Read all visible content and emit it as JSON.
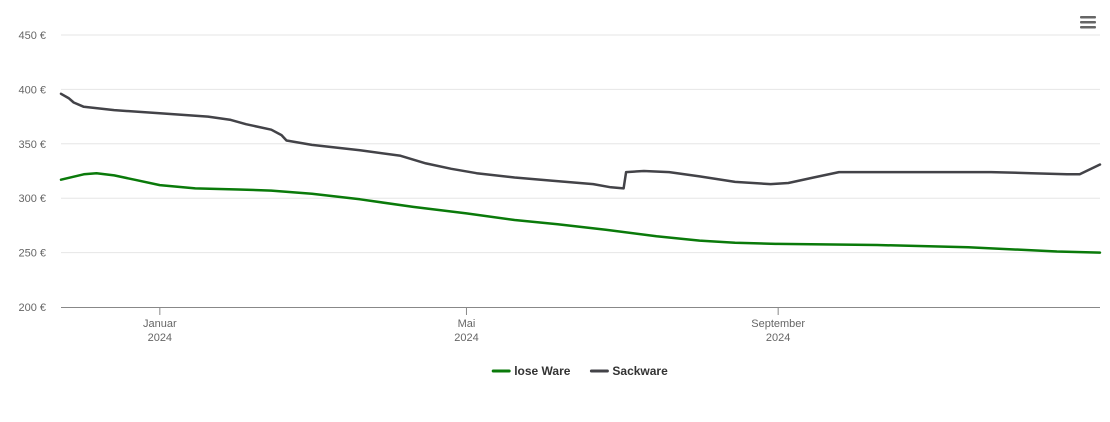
{
  "chart_data": {
    "type": "line",
    "title": "",
    "xlabel": "",
    "ylabel": "",
    "x_range": [
      "2023-11-23",
      "2025-01-06"
    ],
    "ylim": [
      200,
      450
    ],
    "yticks": [
      {
        "value": 200,
        "label": "200 €"
      },
      {
        "value": 250,
        "label": "250 €"
      },
      {
        "value": 300,
        "label": "300 €"
      },
      {
        "value": 350,
        "label": "350 €"
      },
      {
        "value": 400,
        "label": "400 €"
      },
      {
        "value": 450,
        "label": "450 €"
      }
    ],
    "xticks": [
      {
        "date": "2024-01-01",
        "label": [
          "Januar",
          "2024"
        ]
      },
      {
        "date": "2024-05-01",
        "label": [
          "Mai",
          "2024"
        ]
      },
      {
        "date": "2024-09-01",
        "label": [
          "September",
          "2024"
        ]
      }
    ],
    "grid": true,
    "legend_position": "bottom-center",
    "series": [
      {
        "name": "lose Ware",
        "color": "#0a7a0a",
        "points": [
          [
            "2023-11-23",
            317
          ],
          [
            "2023-12-02",
            322
          ],
          [
            "2023-12-07",
            323
          ],
          [
            "2023-12-14",
            321
          ],
          [
            "2023-12-22",
            317
          ],
          [
            "2024-01-01",
            312
          ],
          [
            "2024-01-15",
            309
          ],
          [
            "2024-02-01",
            308
          ],
          [
            "2024-02-14",
            307
          ],
          [
            "2024-03-01",
            304
          ],
          [
            "2024-03-20",
            299
          ],
          [
            "2024-04-10",
            292
          ],
          [
            "2024-05-01",
            286
          ],
          [
            "2024-05-20",
            280
          ],
          [
            "2024-06-06",
            276
          ],
          [
            "2024-06-25",
            271
          ],
          [
            "2024-07-15",
            265
          ],
          [
            "2024-08-01",
            261
          ],
          [
            "2024-08-15",
            259
          ],
          [
            "2024-08-31",
            258
          ],
          [
            "2024-09-01",
            258
          ],
          [
            "2024-10-10",
            257
          ],
          [
            "2024-11-15",
            255
          ],
          [
            "2024-12-20",
            251
          ],
          [
            "2025-01-06",
            250
          ]
        ]
      },
      {
        "name": "Sackware",
        "color": "#434348",
        "points": [
          [
            "2023-11-23",
            396
          ],
          [
            "2023-11-26",
            392
          ],
          [
            "2023-11-28",
            388
          ],
          [
            "2023-12-02",
            384
          ],
          [
            "2023-12-14",
            381
          ],
          [
            "2024-01-01",
            378
          ],
          [
            "2024-01-20",
            375
          ],
          [
            "2024-01-29",
            372
          ],
          [
            "2024-02-04",
            368
          ],
          [
            "2024-02-14",
            363
          ],
          [
            "2024-02-18",
            358
          ],
          [
            "2024-02-20",
            353
          ],
          [
            "2024-03-01",
            349
          ],
          [
            "2024-03-20",
            344
          ],
          [
            "2024-04-05",
            339
          ],
          [
            "2024-04-15",
            332
          ],
          [
            "2024-04-25",
            327
          ],
          [
            "2024-05-05",
            323
          ],
          [
            "2024-05-20",
            319
          ],
          [
            "2024-06-04",
            316
          ],
          [
            "2024-06-20",
            313
          ],
          [
            "2024-06-27",
            310
          ],
          [
            "2024-07-02",
            309
          ],
          [
            "2024-07-03",
            324
          ],
          [
            "2024-07-10",
            325
          ],
          [
            "2024-07-20",
            324
          ],
          [
            "2024-08-01",
            320
          ],
          [
            "2024-08-15",
            315
          ],
          [
            "2024-08-29",
            313
          ],
          [
            "2024-09-05",
            314
          ],
          [
            "2024-09-15",
            319
          ],
          [
            "2024-09-25",
            324
          ],
          [
            "2024-10-20",
            324
          ],
          [
            "2024-11-24",
            324
          ],
          [
            "2024-12-10",
            323
          ],
          [
            "2024-12-24",
            322
          ],
          [
            "2024-12-29",
            322
          ],
          [
            "2025-01-06",
            331
          ]
        ]
      }
    ]
  },
  "menu": {
    "icon": "hamburger-menu-icon"
  }
}
